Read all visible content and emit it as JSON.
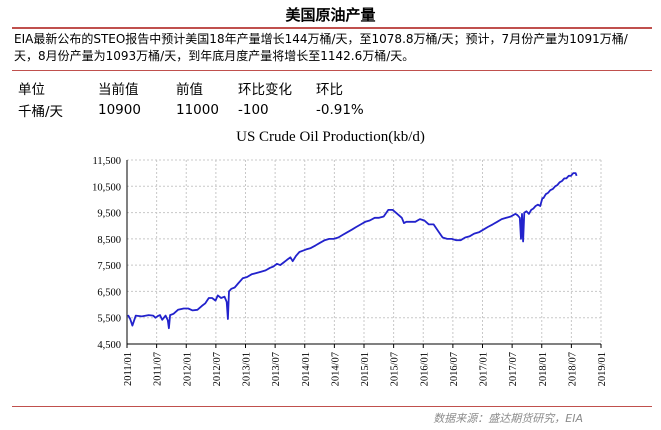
{
  "header": {
    "title": "美国原油产量"
  },
  "note": {
    "lines": [
      "EIA最新公布的STEO报告中预计美国18年产量增长144万桶/天，至1078.8万桶/天；预计，7月份产量为1091万桶/",
      "天，8月份产量为1093万桶/天，到年底月度产量将增长至1142.6万桶/天。"
    ]
  },
  "stats": {
    "headers": [
      "单位",
      "当前值",
      "前值",
      "环比变化",
      "环比"
    ],
    "values": [
      "千桶/天",
      "10900",
      "11000",
      "-100",
      "-0.91%"
    ]
  },
  "source": "数据来源：盛达期货研究，EIA",
  "colors": {
    "line": "#2222cc",
    "accent": "#c0504d",
    "grid": "#c8c8c8"
  },
  "chart_data": {
    "type": "line",
    "title": "US Crude Oil Production(kb/d)",
    "ylim": [
      4500,
      11500
    ],
    "yticks": [
      "4,500",
      "5,500",
      "6,500",
      "7,500",
      "8,500",
      "9,500",
      "10,500",
      "11,500"
    ],
    "xlim": [
      "2011-01",
      "2019-01"
    ],
    "xticks": [
      "2011/01",
      "2011/07",
      "2012/01",
      "2012/07",
      "2013/01",
      "2013/07",
      "2014/01",
      "2014/07",
      "2015/01",
      "2015/07",
      "2016/01",
      "2016/07",
      "2017/01",
      "2017/07",
      "2018/01",
      "2018/07",
      "2019/01"
    ],
    "grid": true,
    "series": [
      {
        "x": [
          "2011-01-07",
          "2011-01-21",
          "2011-02-04",
          "2011-02-25",
          "2011-04-01",
          "2011-05-13",
          "2011-06-10",
          "2011-06-24",
          "2011-07-08",
          "2011-07-22",
          "2011-08-05",
          "2011-08-26",
          "2011-09-09",
          "2011-09-16",
          "2011-09-23",
          "2011-10-14",
          "2011-11-11",
          "2011-12-16",
          "2012-01-13",
          "2012-02-10",
          "2012-03-09",
          "2012-04-06",
          "2012-04-27",
          "2012-05-18",
          "2012-06-08",
          "2012-06-29",
          "2012-07-13",
          "2012-08-03",
          "2012-08-24",
          "2012-09-07",
          "2012-09-14",
          "2012-09-21",
          "2012-10-05",
          "2012-10-26",
          "2012-11-16",
          "2012-12-14",
          "2013-01-11",
          "2013-02-08",
          "2013-03-08",
          "2013-04-05",
          "2013-05-03",
          "2013-05-31",
          "2013-06-21",
          "2013-07-12",
          "2013-08-02",
          "2013-08-23",
          "2013-09-13",
          "2013-10-04",
          "2013-10-18",
          "2013-11-08",
          "2013-11-29",
          "2013-12-20",
          "2014-01-10",
          "2014-02-07",
          "2014-03-07",
          "2014-04-04",
          "2014-05-02",
          "2014-05-30",
          "2014-06-27",
          "2014-07-25",
          "2014-08-22",
          "2014-09-19",
          "2014-10-17",
          "2014-11-14",
          "2014-12-12",
          "2015-01-09",
          "2015-02-06",
          "2015-03-06",
          "2015-04-03",
          "2015-05-01",
          "2015-05-29",
          "2015-06-26",
          "2015-07-24",
          "2015-08-21",
          "2015-09-04",
          "2015-09-18",
          "2015-10-16",
          "2015-11-13",
          "2015-12-11",
          "2016-01-08",
          "2016-02-05",
          "2016-03-04",
          "2016-04-01",
          "2016-04-29",
          "2016-05-27",
          "2016-06-24",
          "2016-07-22",
          "2016-08-19",
          "2016-09-16",
          "2016-10-14",
          "2016-11-11",
          "2016-12-09",
          "2017-01-06",
          "2017-02-03",
          "2017-03-03",
          "2017-03-31",
          "2017-04-28",
          "2017-05-26",
          "2017-06-23",
          "2017-07-07",
          "2017-07-21",
          "2017-08-04",
          "2017-08-18",
          "2017-08-25",
          "2017-09-01",
          "2017-09-08",
          "2017-09-15",
          "2017-09-29",
          "2017-10-13",
          "2017-10-27",
          "2017-11-10",
          "2017-11-24",
          "2017-12-08",
          "2017-12-22",
          "2018-01-05",
          "2018-01-12",
          "2018-01-26",
          "2018-02-09",
          "2018-02-23",
          "2018-03-09",
          "2018-03-23",
          "2018-04-06",
          "2018-04-20",
          "2018-05-04",
          "2018-05-18",
          "2018-06-01",
          "2018-06-15",
          "2018-06-29",
          "2018-07-13",
          "2018-07-27",
          "2018-08-03"
        ],
        "values": [
          5600,
          5450,
          5200,
          5580,
          5550,
          5600,
          5580,
          5500,
          5560,
          5600,
          5420,
          5580,
          5400,
          5100,
          5600,
          5650,
          5800,
          5850,
          5850,
          5780,
          5800,
          5950,
          6050,
          6250,
          6250,
          6150,
          6350,
          6250,
          6300,
          6100,
          5450,
          6500,
          6600,
          6650,
          6800,
          7000,
          7050,
          7150,
          7200,
          7250,
          7300,
          7400,
          7450,
          7550,
          7500,
          7600,
          7700,
          7800,
          7650,
          7850,
          8000,
          8050,
          8100,
          8150,
          8250,
          8350,
          8450,
          8500,
          8500,
          8550,
          8650,
          8750,
          8850,
          8950,
          9050,
          9150,
          9200,
          9300,
          9300,
          9350,
          9600,
          9600,
          9450,
          9300,
          9100,
          9150,
          9150,
          9150,
          9250,
          9200,
          9050,
          9050,
          8800,
          8550,
          8500,
          8500,
          8450,
          8450,
          8550,
          8600,
          8700,
          8750,
          8850,
          8950,
          9050,
          9150,
          9250,
          9300,
          9350,
          9400,
          9450,
          9400,
          9300,
          8500,
          9450,
          8400,
          9500,
          9550,
          9450,
          9600,
          9650,
          9750,
          9800,
          9750,
          10050,
          10050,
          10200,
          10250,
          10350,
          10400,
          10500,
          10550,
          10650,
          10700,
          10800,
          10800,
          10900,
          10900,
          11000,
          11000,
          10900
        ]
      }
    ]
  }
}
